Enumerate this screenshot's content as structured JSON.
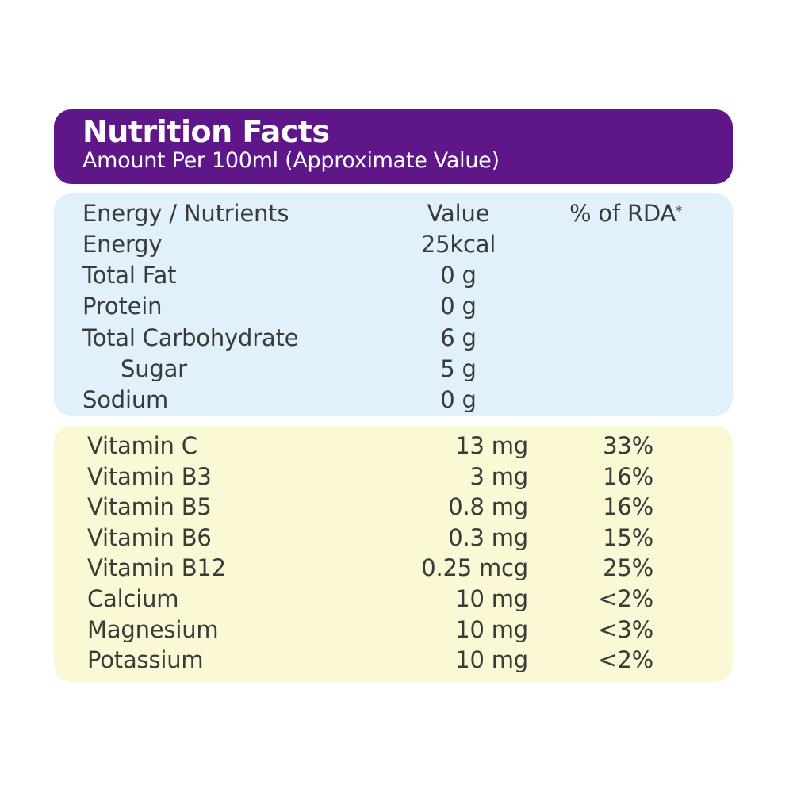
{
  "header": {
    "title": "Nutrition Facts",
    "subtitle": "Amount Per 100ml (Approximate Value)"
  },
  "nutrients_table": {
    "columns": {
      "name": "Energy / Nutrients",
      "value": "Value",
      "rda": "% of RDA",
      "rda_mark": "*"
    },
    "rows": [
      {
        "name": "Energy",
        "value": "25kcal",
        "indent": false
      },
      {
        "name": "Total Fat",
        "value": "0 g",
        "indent": false
      },
      {
        "name": "Protein",
        "value": "0 g",
        "indent": false
      },
      {
        "name": "Total Carbohydrate",
        "value": "6 g",
        "indent": false
      },
      {
        "name": "Sugar",
        "value": "5 g",
        "indent": true
      },
      {
        "name": "Sodium",
        "value": "0 g",
        "indent": false
      }
    ]
  },
  "vitamins_table": {
    "rows": [
      {
        "name": "Vitamin C",
        "value": "13 mg",
        "rda": "33%"
      },
      {
        "name": "Vitamin B3",
        "value": "3 mg",
        "rda": "16%"
      },
      {
        "name": "Vitamin B5",
        "value": "0.8 mg",
        "rda": "16%"
      },
      {
        "name": "Vitamin B6",
        "value": "0.3 mg",
        "rda": "15%"
      },
      {
        "name": "Vitamin B12",
        "value": "0.25 mcg",
        "rda": "25%"
      },
      {
        "name": "Calcium",
        "value": "10 mg",
        "rda": "<2%"
      },
      {
        "name": "Magnesium",
        "value": "10 mg",
        "rda": "<3%"
      },
      {
        "name": "Potassium",
        "value": "10 mg",
        "rda": "<2%"
      }
    ]
  },
  "colors": {
    "header_bg": "#5e1689",
    "header_text": "#ffffff",
    "nutrients_bg": "#e1f1fb",
    "vitamins_bg": "#fbf8d6",
    "body_text": "#3a3a3a"
  }
}
